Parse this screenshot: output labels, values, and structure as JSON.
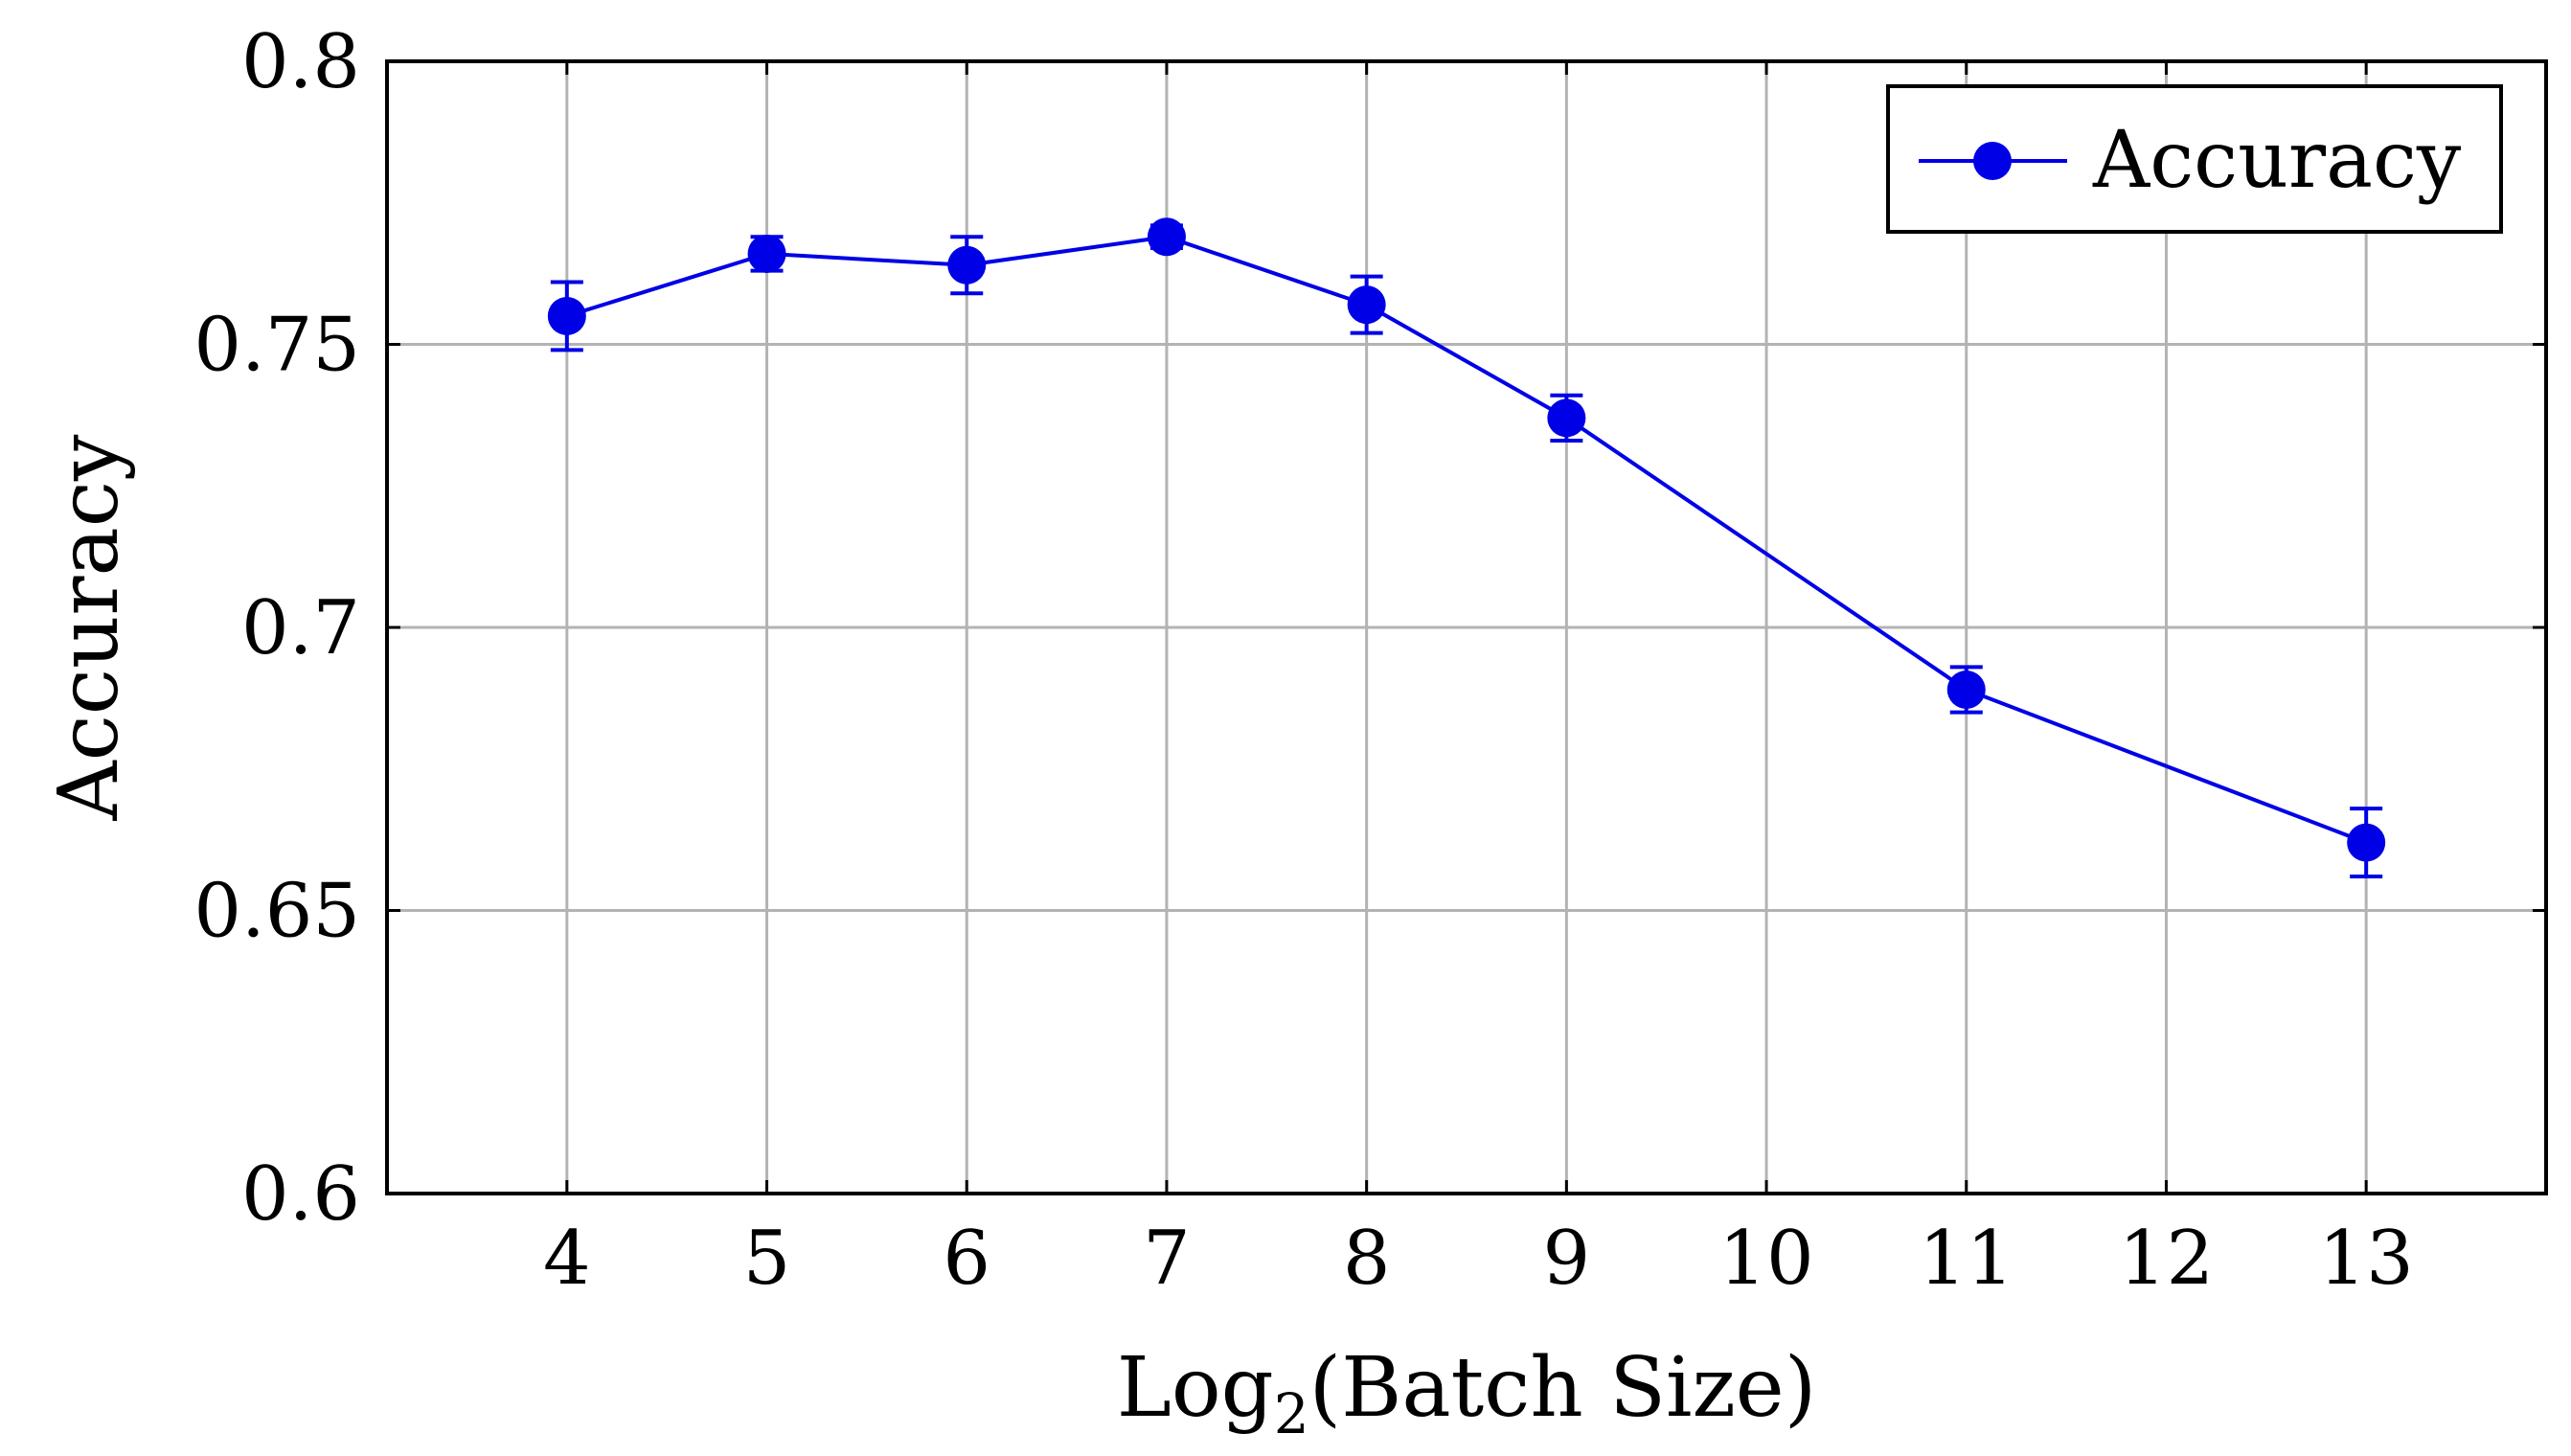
{
  "chart_data": {
    "type": "line",
    "title": "",
    "xlabel_main": "Log",
    "xlabel_sub": "2",
    "xlabel_rest": "(Batch Size)",
    "ylabel": "Accuracy",
    "x_ticks": [
      "4",
      "5",
      "6",
      "7",
      "8",
      "9",
      "10",
      "11",
      "12",
      "13"
    ],
    "y_ticks": [
      "0.6",
      "0.65",
      "0.7",
      "0.75",
      "0.8"
    ],
    "xlim": [
      3.1,
      13.9
    ],
    "ylim": [
      0.6,
      0.8
    ],
    "grid": true,
    "legend_position": "top-right",
    "series": [
      {
        "name": "Accuracy",
        "color": "#0000e6",
        "marker": "circle",
        "x": [
          4,
          5,
          6,
          7,
          8,
          9,
          11,
          13
        ],
        "y": [
          0.755,
          0.766,
          0.764,
          0.769,
          0.757,
          0.737,
          0.689,
          0.662
        ],
        "error": [
          0.006,
          0.003,
          0.005,
          0.002,
          0.005,
          0.004,
          0.004,
          0.006
        ]
      }
    ]
  }
}
